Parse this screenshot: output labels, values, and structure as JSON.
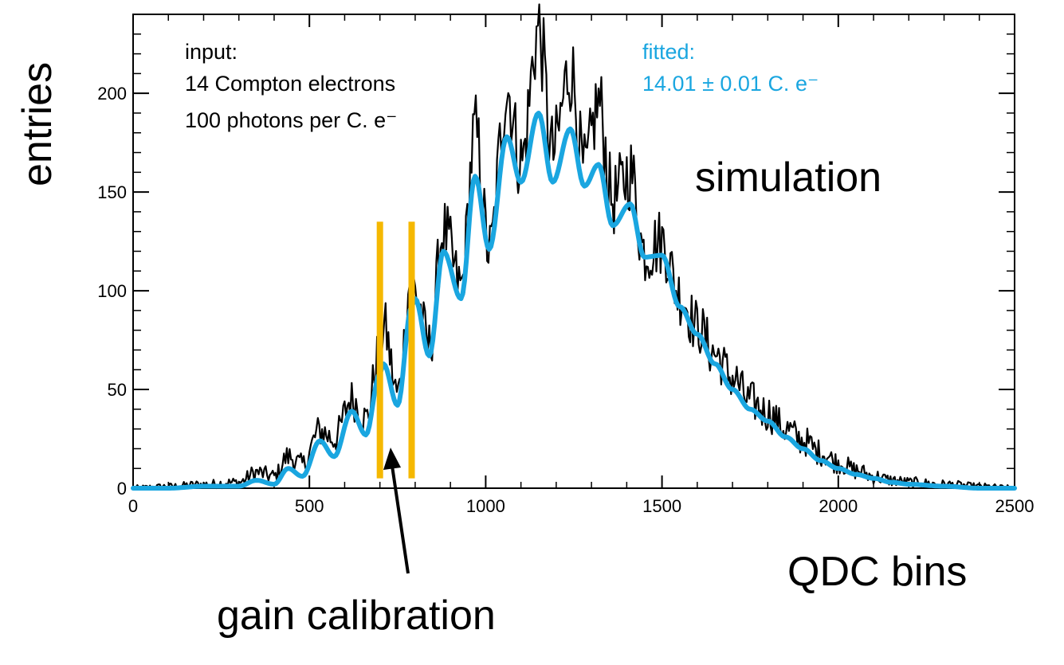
{
  "chart_data": {
    "type": "line",
    "title": "",
    "xlabel": "QDC bins",
    "ylabel": "entries",
    "xlim": [
      0,
      2500
    ],
    "ylim": [
      0,
      240
    ],
    "x_ticks": [
      0,
      500,
      1000,
      1500,
      2000,
      2500
    ],
    "x_tick_labels": [
      "0",
      "500",
      "1000",
      "1500",
      "2000",
      "2500"
    ],
    "y_ticks": [
      0,
      50,
      100,
      150,
      200
    ],
    "y_tick_labels": [
      "0",
      "50",
      "100",
      "150",
      "200"
    ],
    "grid": false,
    "series": [
      {
        "name": "simulated histogram",
        "color": "#000000",
        "style": "noisy histogram around fit",
        "x": [
          0,
          100,
          200,
          300,
          350,
          400,
          440,
          480,
          530,
          570,
          620,
          660,
          700,
          710,
          750,
          790,
          800,
          840,
          880,
          930,
          970,
          1010,
          1060,
          1100,
          1150,
          1190,
          1240,
          1280,
          1320,
          1360,
          1410,
          1450,
          1500,
          1550,
          1600,
          1650,
          1700,
          1750,
          1800,
          1850,
          1900,
          1950,
          2000,
          2050,
          2100,
          2150,
          2200,
          2300,
          2400,
          2500
        ],
        "y": [
          0,
          1,
          2,
          3,
          8,
          6,
          16,
          12,
          29,
          25,
          45,
          35,
          70,
          82,
          48,
          107,
          100,
          72,
          130,
          102,
          180,
          120,
          202,
          165,
          232,
          170,
          212,
          160,
          195,
          146,
          160,
          120,
          125,
          98,
          82,
          68,
          56,
          44,
          38,
          30,
          24,
          18,
          13,
          9,
          6,
          4,
          3,
          2,
          1,
          0
        ]
      },
      {
        "name": "fit",
        "color": "#1aa6e0",
        "x": [
          0,
          100,
          200,
          300,
          350,
          400,
          440,
          480,
          530,
          570,
          620,
          660,
          700,
          710,
          750,
          790,
          800,
          840,
          880,
          930,
          970,
          1010,
          1060,
          1100,
          1150,
          1190,
          1240,
          1280,
          1320,
          1360,
          1410,
          1450,
          1500,
          1550,
          1600,
          1650,
          1700,
          1750,
          1800,
          1850,
          1900,
          1950,
          2000,
          2050,
          2100,
          2150,
          2200,
          2300,
          2400,
          2500
        ],
        "y": [
          0,
          0,
          1,
          1,
          4,
          2,
          10,
          6,
          24,
          16,
          39,
          27,
          58,
          63,
          42,
          92,
          96,
          67,
          120,
          96,
          158,
          121,
          178,
          155,
          190,
          155,
          182,
          153,
          164,
          133,
          144,
          117,
          118,
          92,
          78,
          63,
          50,
          40,
          34,
          26,
          20,
          14,
          10,
          7,
          5,
          3,
          2,
          1,
          0,
          0
        ]
      }
    ],
    "annotations": [
      {
        "text": "input:",
        "color": "#000000"
      },
      {
        "text": "14 Compton electrons",
        "color": "#000000"
      },
      {
        "text": "100 photons per C. e⁻",
        "color": "#000000"
      },
      {
        "text": "fitted:",
        "color": "#1aa6e0"
      },
      {
        "text": "14.01 ± 0.01 C. e⁻",
        "color": "#1aa6e0"
      },
      {
        "text": "simulation",
        "color": "#000000"
      },
      {
        "text": "gain calibration",
        "color": "#000000"
      }
    ],
    "markers": [
      {
        "name": "gain-marker-left",
        "x": 700,
        "y_range": [
          5,
          135
        ],
        "color": "#f5b800"
      },
      {
        "name": "gain-marker-right",
        "x": 790,
        "y_range": [
          5,
          135
        ],
        "color": "#f5b800"
      }
    ]
  }
}
